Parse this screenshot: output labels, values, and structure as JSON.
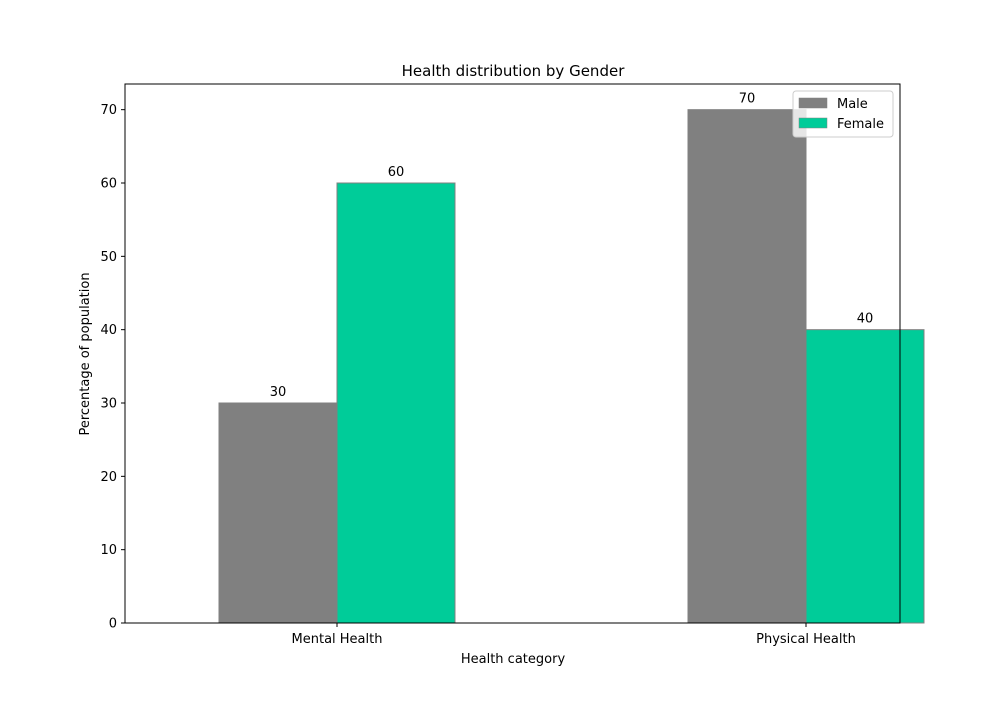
{
  "chart_data": {
    "type": "bar",
    "title": "Health distribution by Gender",
    "xlabel": "Health category",
    "ylabel": "Percentage of population",
    "categories": [
      "Mental Health",
      "Physical Health"
    ],
    "series": [
      {
        "name": "Male",
        "values": [
          30,
          70
        ],
        "color": "#808080"
      },
      {
        "name": "Female",
        "values": [
          60,
          40
        ],
        "color": "#00cc99"
      }
    ],
    "ylim": [
      0,
      73.5
    ],
    "yticks": [
      0,
      10,
      20,
      30,
      40,
      50,
      60,
      70
    ],
    "grid": false,
    "legend": "top-right",
    "bar_edge_color": "#808080"
  }
}
